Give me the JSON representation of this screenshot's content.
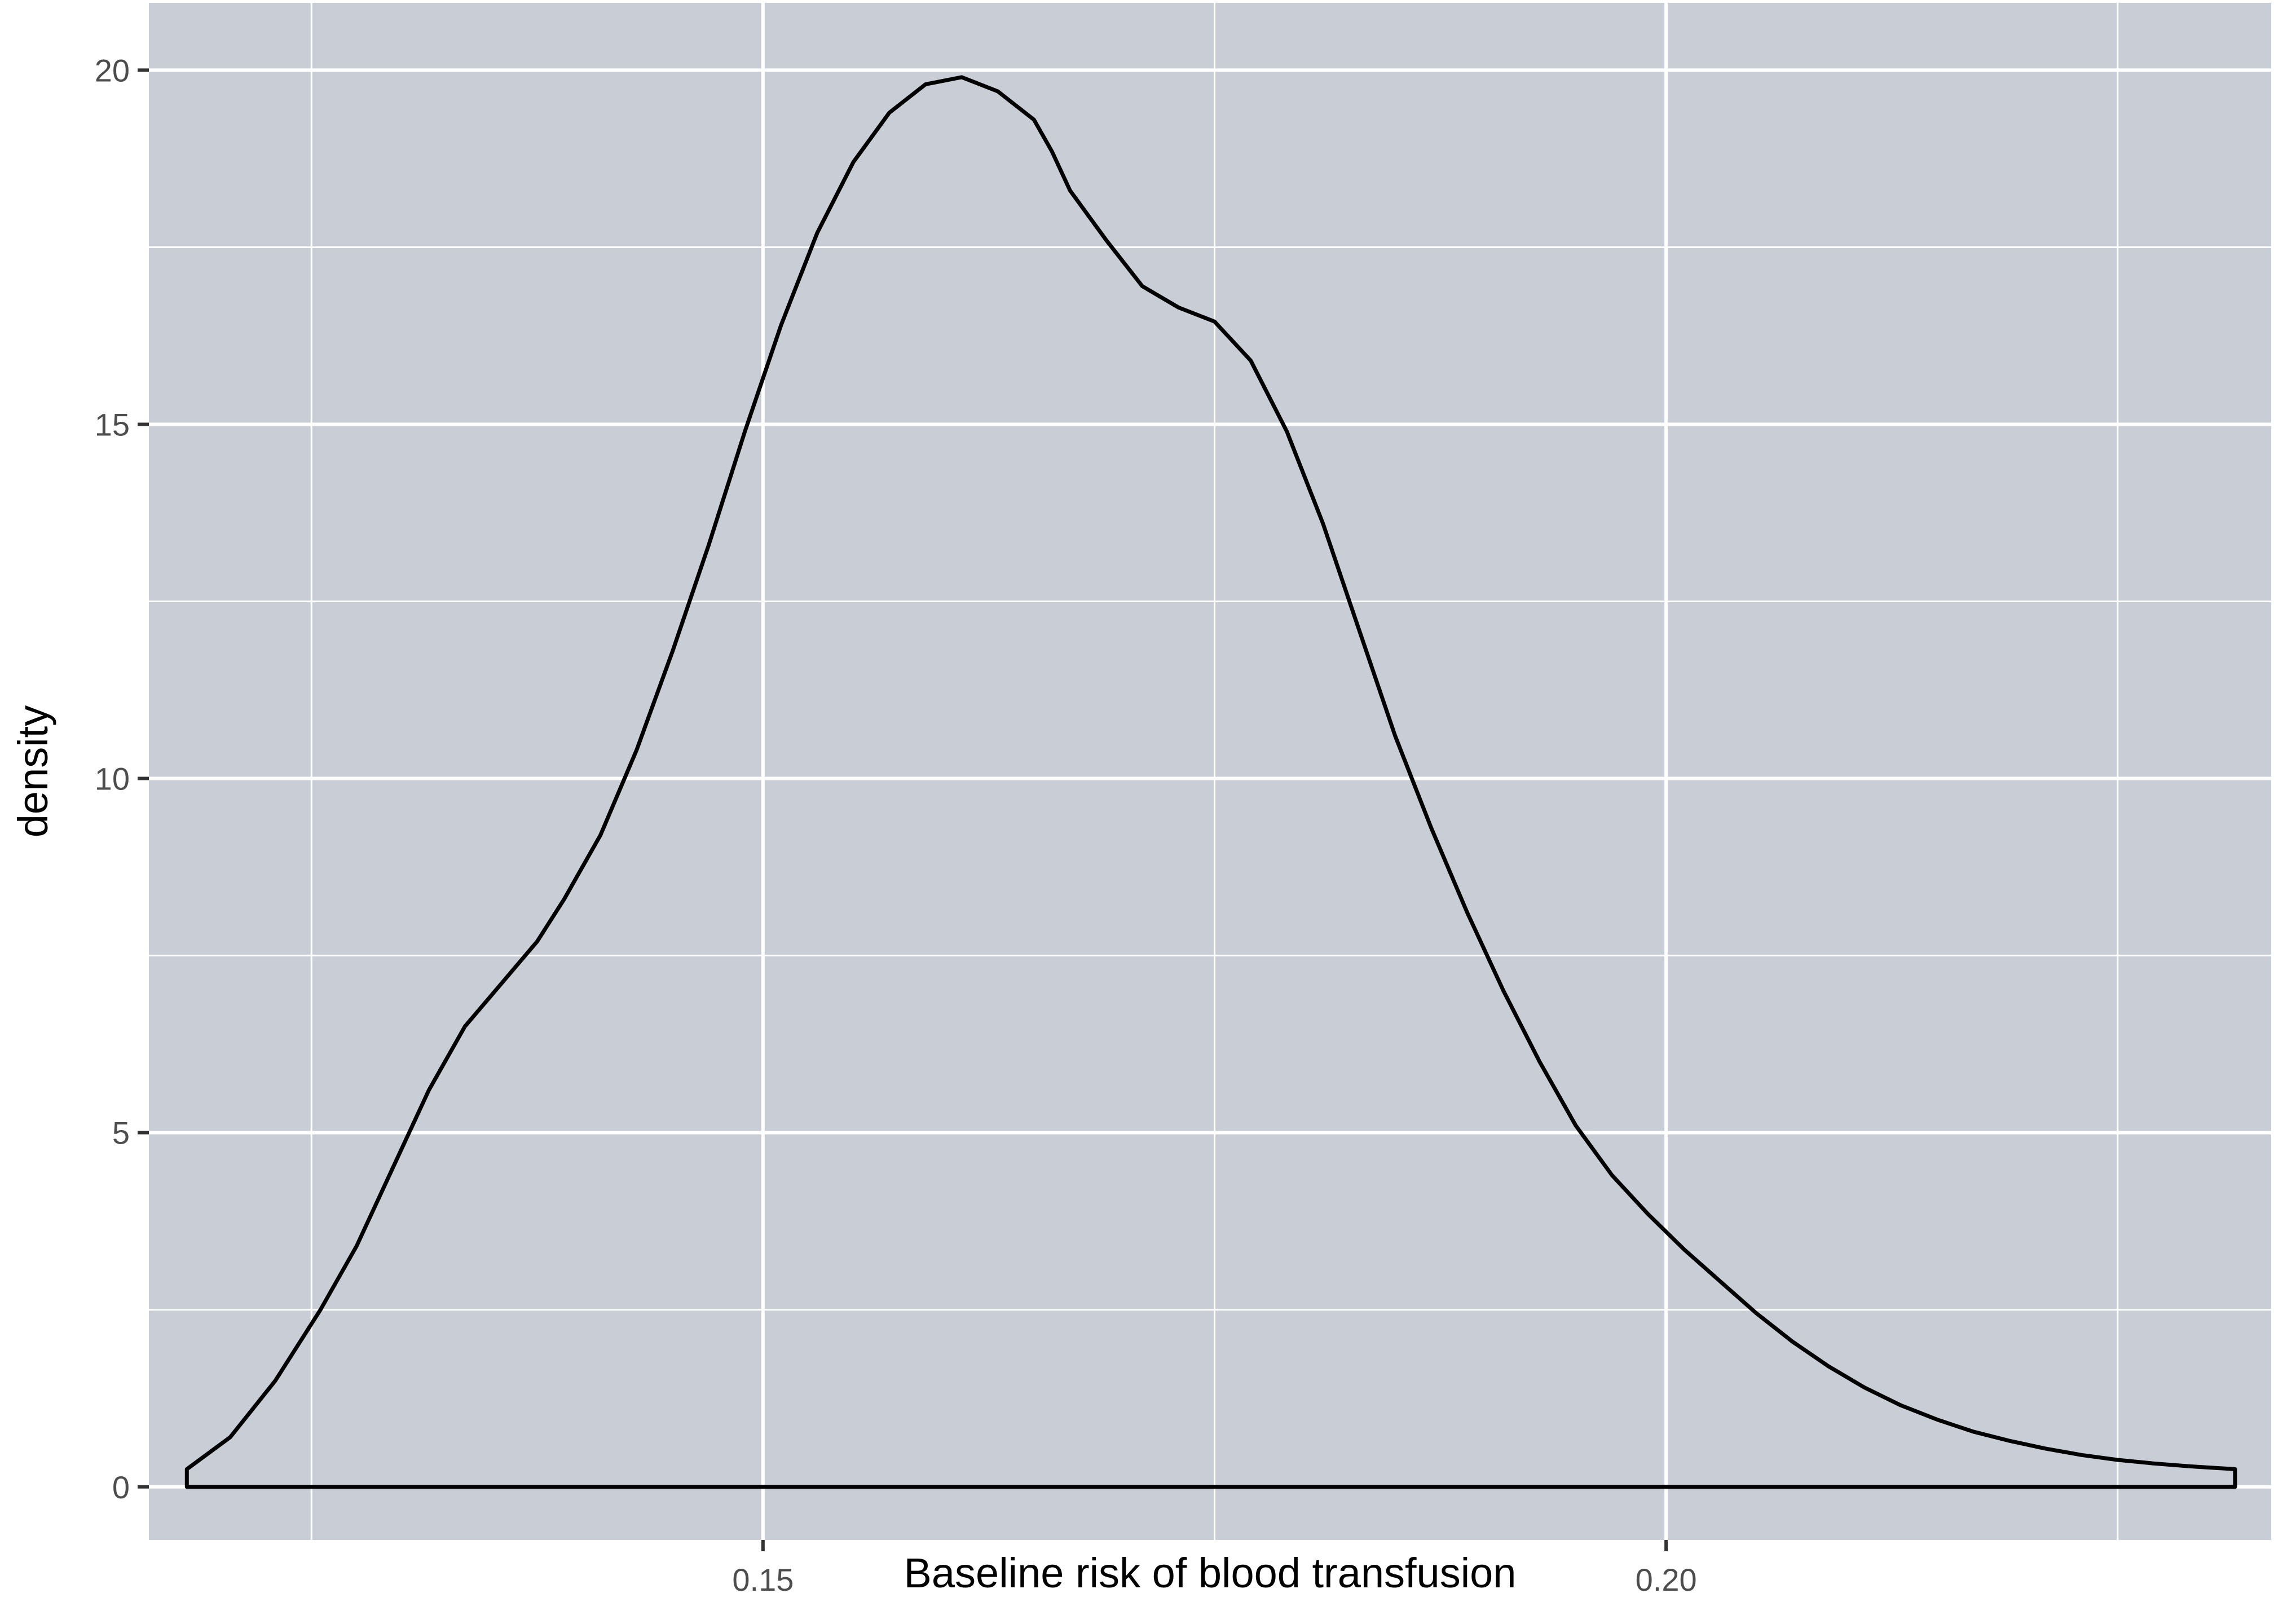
{
  "chart_data": {
    "type": "area",
    "title": "",
    "xlabel": "Baseline risk of blood transfusion",
    "ylabel": "density",
    "xlim": [
      0.116,
      0.2335
    ],
    "ylim": [
      -0.75,
      20.95
    ],
    "x_ticks": [
      0.15,
      0.2
    ],
    "x_tick_labels": [
      "0.15",
      "0.20"
    ],
    "x_minor_ticks": [
      0.125,
      0.175,
      0.225
    ],
    "y_ticks": [
      0,
      5,
      10,
      15,
      20
    ],
    "y_tick_labels": [
      "0",
      "5",
      "10",
      "15",
      "20"
    ],
    "y_minor_ticks": [
      2.5,
      7.5,
      12.5,
      17.5
    ],
    "grid": true,
    "legend": "none",
    "colors": {
      "panel_background": "#c9cdd6",
      "grid": "#ffffff",
      "line": "#000000",
      "fill": "none"
    },
    "series": [
      {
        "x": [
          0.1181,
          0.1205,
          0.123,
          0.1255,
          0.1275,
          0.1295,
          0.1315,
          0.1335,
          0.1355,
          0.1375,
          0.139,
          0.141,
          0.143,
          0.145,
          0.147,
          0.149,
          0.151,
          0.153,
          0.155,
          0.157,
          0.159,
          0.161,
          0.163,
          0.165,
          0.166,
          0.167,
          0.169,
          0.171,
          0.173,
          0.175,
          0.177,
          0.179,
          0.181,
          0.183,
          0.185,
          0.187,
          0.189,
          0.191,
          0.193,
          0.195,
          0.197,
          0.199,
          0.201,
          0.203,
          0.205,
          0.207,
          0.209,
          0.211,
          0.213,
          0.215,
          0.217,
          0.219,
          0.221,
          0.223,
          0.225,
          0.227,
          0.229,
          0.2315
        ],
        "y": [
          0.25,
          0.7,
          1.5,
          2.5,
          3.4,
          4.5,
          5.6,
          6.5,
          7.1,
          7.7,
          8.3,
          9.2,
          10.4,
          11.8,
          13.3,
          14.9,
          16.4,
          17.7,
          18.7,
          19.4,
          19.8,
          19.9,
          19.7,
          19.3,
          18.85,
          18.3,
          17.6,
          16.95,
          16.65,
          16.45,
          15.9,
          14.9,
          13.6,
          12.1,
          10.6,
          9.3,
          8.1,
          7.0,
          6.0,
          5.1,
          4.4,
          3.85,
          3.35,
          2.9,
          2.45,
          2.05,
          1.7,
          1.4,
          1.15,
          0.95,
          0.78,
          0.65,
          0.54,
          0.45,
          0.38,
          0.33,
          0.29,
          0.25
        ]
      }
    ]
  }
}
